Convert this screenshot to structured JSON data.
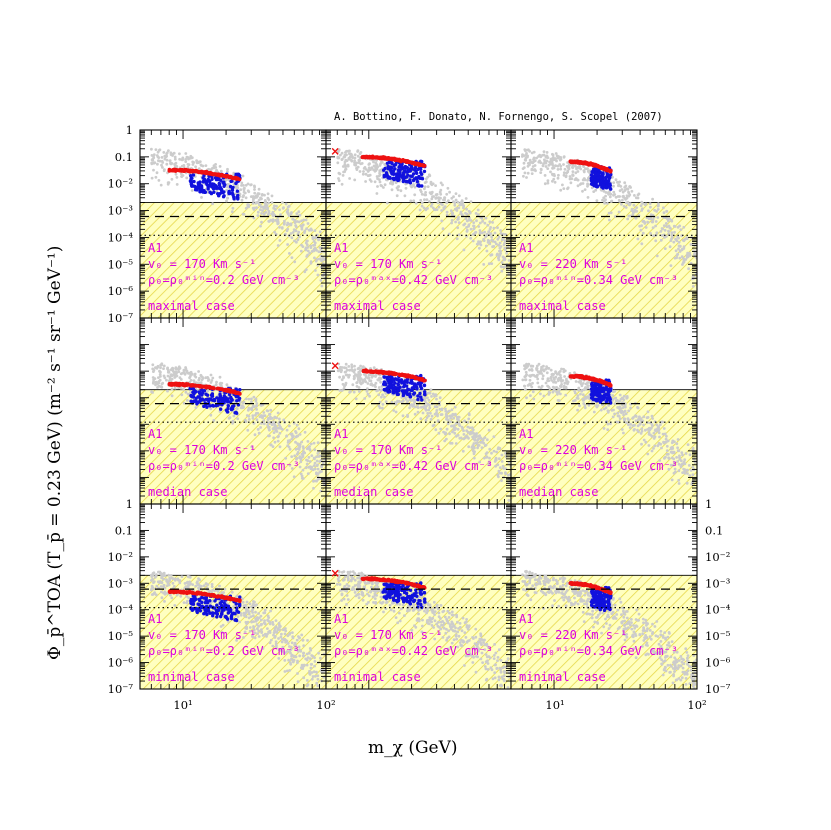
{
  "credit": "A. Bottino, F. Donato, N. Fornengo, S. Scopel (2007)",
  "colors": {
    "scan_points": "#cccccc",
    "red_points": "#ee1111",
    "blue_points": "#1111dd",
    "annotation": "#dd00dd",
    "excluded_fill": "#ffffc0",
    "excluded_hatch": "#e6d84a"
  },
  "axes": {
    "ylabel": "Φ_p̄^TOA (T_p̄ = 0.23 GeV)   (m⁻² s⁻¹ sr⁻¹ GeV⁻¹)",
    "xlabel": "m_χ (GeV)",
    "x_tick_labels": [
      "10¹",
      "10²",
      "10¹",
      "10²"
    ],
    "y_tick_labels_left_top": [
      "1",
      "0.1",
      "10⁻²",
      "10⁻³",
      "10⁻⁴",
      "10⁻⁵",
      "10⁻⁶",
      "10⁻⁷"
    ],
    "y_tick_labels_left_bottom": [
      "1",
      "0.1",
      "10⁻²",
      "10⁻³",
      "10⁻⁴",
      "10⁻⁵",
      "10⁻⁶",
      "10⁻⁷"
    ],
    "y_tick_labels_right_bottom": [
      "1",
      "0.1",
      "10⁻²",
      "10⁻³",
      "10⁻⁴",
      "10⁻⁵",
      "10⁻⁶",
      "10⁻⁷"
    ]
  },
  "chart_data": {
    "type": "scatter",
    "grid": false,
    "x_scale": "log",
    "y_scale": "log",
    "xlim": [
      5,
      100
    ],
    "ylim": [
      1e-07,
      1
    ],
    "excluded_level": 0.002,
    "dashed_level": 0.0006,
    "dotted_level": 0.00012,
    "columns": [
      {
        "label_line1": "A1",
        "label_line2": "v₀ = 170 Km s⁻¹",
        "label_line3": "ρ₀=ρ₀ᵐⁱⁿ=0.2 GeV cm⁻³",
        "red_range": [
          8,
          25
        ],
        "red_level": 0.032,
        "cross": null
      },
      {
        "label_line1": "A1",
        "label_line2": "v₀ = 170 Km s⁻¹",
        "label_line3": "ρ₀=ρ₀ᵐᵃˣ=0.42 GeV cm⁻³",
        "red_range": [
          9,
          25
        ],
        "red_level": 0.1,
        "cross": {
          "x": 5.8,
          "y": 0.16
        }
      },
      {
        "label_line1": "A1",
        "label_line2": "v₀ = 220 Km s⁻¹",
        "label_line3": "ρ₀=ρ₀ᵐⁱⁿ=0.34 GeV cm⁻³",
        "red_range": [
          13,
          25
        ],
        "red_level": 0.065,
        "cross": null
      }
    ],
    "rows": [
      {
        "case": "maximal case",
        "scale": 1.0
      },
      {
        "case": "median case",
        "scale": 0.1
      },
      {
        "case": "minimal case",
        "scale": 0.015
      }
    ]
  }
}
